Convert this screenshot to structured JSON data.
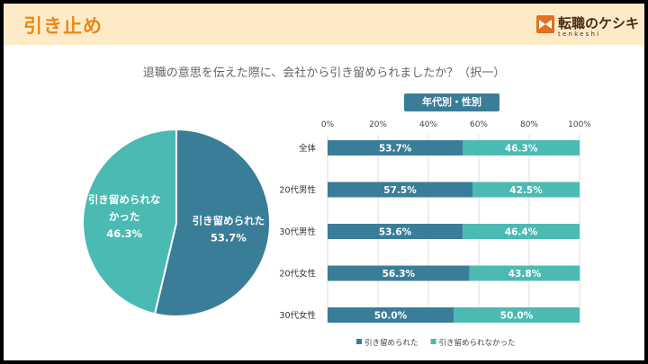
{
  "header": {
    "title": "引き止め"
  },
  "logo": {
    "name": "転職のケシキ",
    "sub": "tenkeshi"
  },
  "question": "退職の意思を伝えた際に、会社から引き留められましたか？（択一）",
  "section_badge": "年代別・性別",
  "colors": {
    "series1": "#3a7d98",
    "series2": "#4bbab3",
    "accent": "#e8891c",
    "header_bg": "#fdebc8"
  },
  "chart_data": [
    {
      "type": "pie",
      "labels": [
        "引き留められた",
        "引き留められなかった"
      ],
      "label_lines": [
        [
          "引き留められた"
        ],
        [
          "引き留められな",
          "かった"
        ]
      ],
      "values": [
        53.7,
        46.3
      ],
      "value_labels": [
        "53.7%",
        "46.3%"
      ],
      "colors": [
        "#3a7d98",
        "#4bbab3"
      ]
    },
    {
      "type": "bar",
      "orientation": "horizontal",
      "stacked": true,
      "categories": [
        "全体",
        "20代男性",
        "30代男性",
        "20代女性",
        "30代女性"
      ],
      "series": [
        {
          "name": "引き留められた",
          "values": [
            53.7,
            57.5,
            53.6,
            56.3,
            50.0
          ],
          "labels": [
            "53.7%",
            "57.5%",
            "53.6%",
            "56.3%",
            "50.0%"
          ],
          "color": "#3a7d98"
        },
        {
          "name": "引き留められなかった",
          "values": [
            46.3,
            42.5,
            46.4,
            43.8,
            50.0
          ],
          "labels": [
            "46.3%",
            "42.5%",
            "46.4%",
            "43.8%",
            "50.0%"
          ],
          "color": "#4bbab3"
        }
      ],
      "xlim": [
        0,
        100
      ],
      "x_ticks": [
        "0%",
        "20%",
        "40%",
        "60%",
        "80%",
        "100%"
      ],
      "legend": "bottom"
    }
  ]
}
